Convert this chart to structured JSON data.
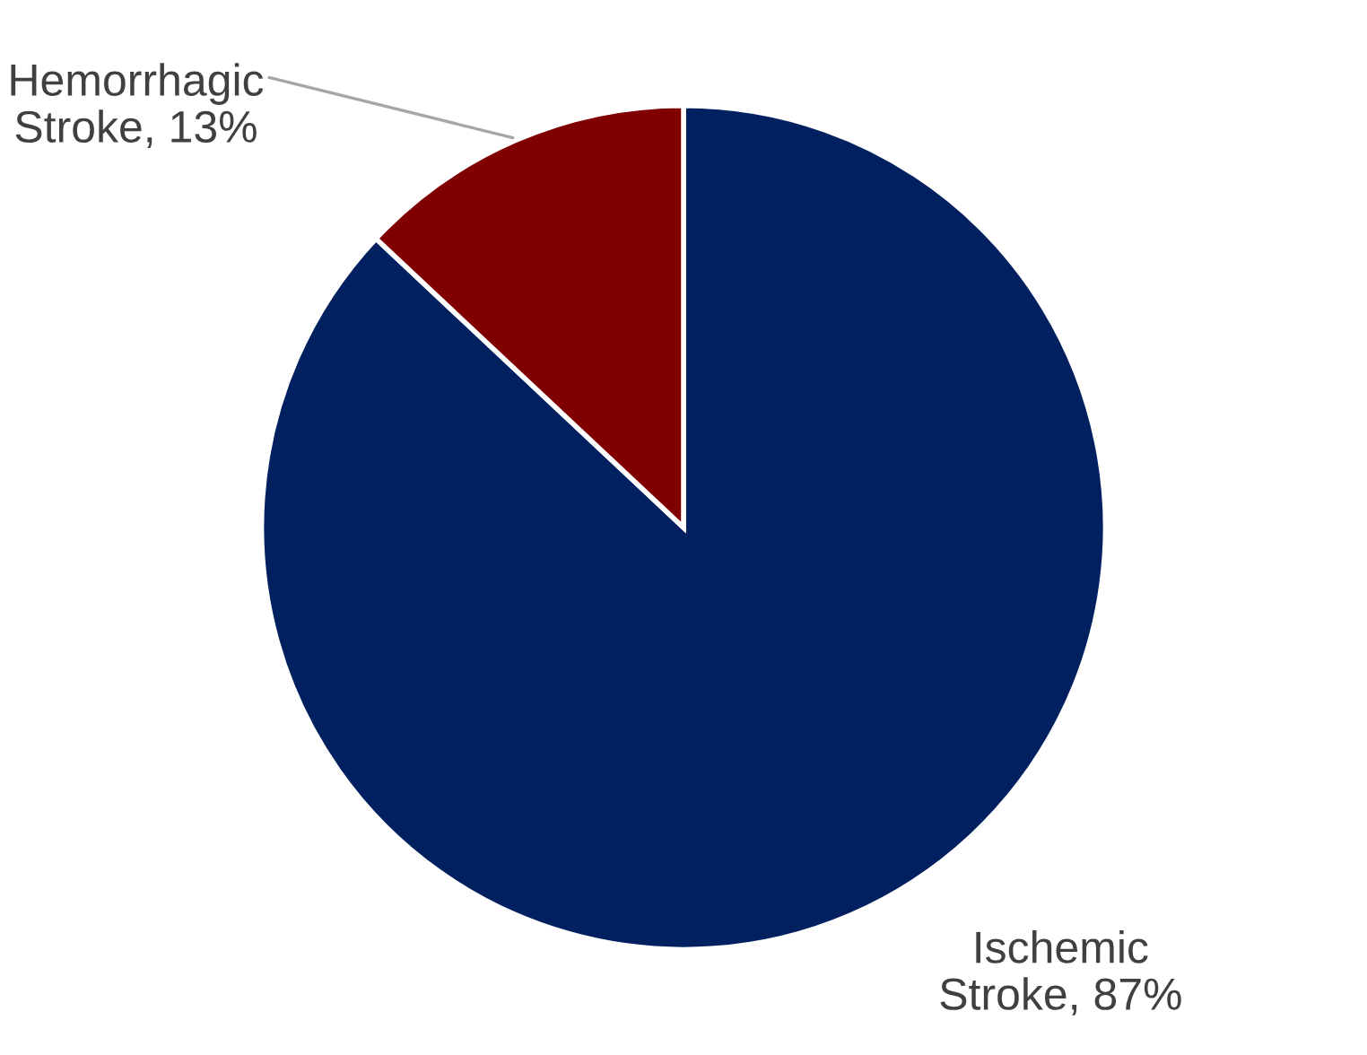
{
  "chart_data": {
    "type": "pie",
    "categories": [
      "Ischemic Stroke",
      "Hemorrhagic Stroke"
    ],
    "values": [
      87,
      13
    ],
    "colors": [
      "#002060",
      "#800000"
    ],
    "value_labels": [
      "87%",
      "13%"
    ],
    "legend": false
  }
}
